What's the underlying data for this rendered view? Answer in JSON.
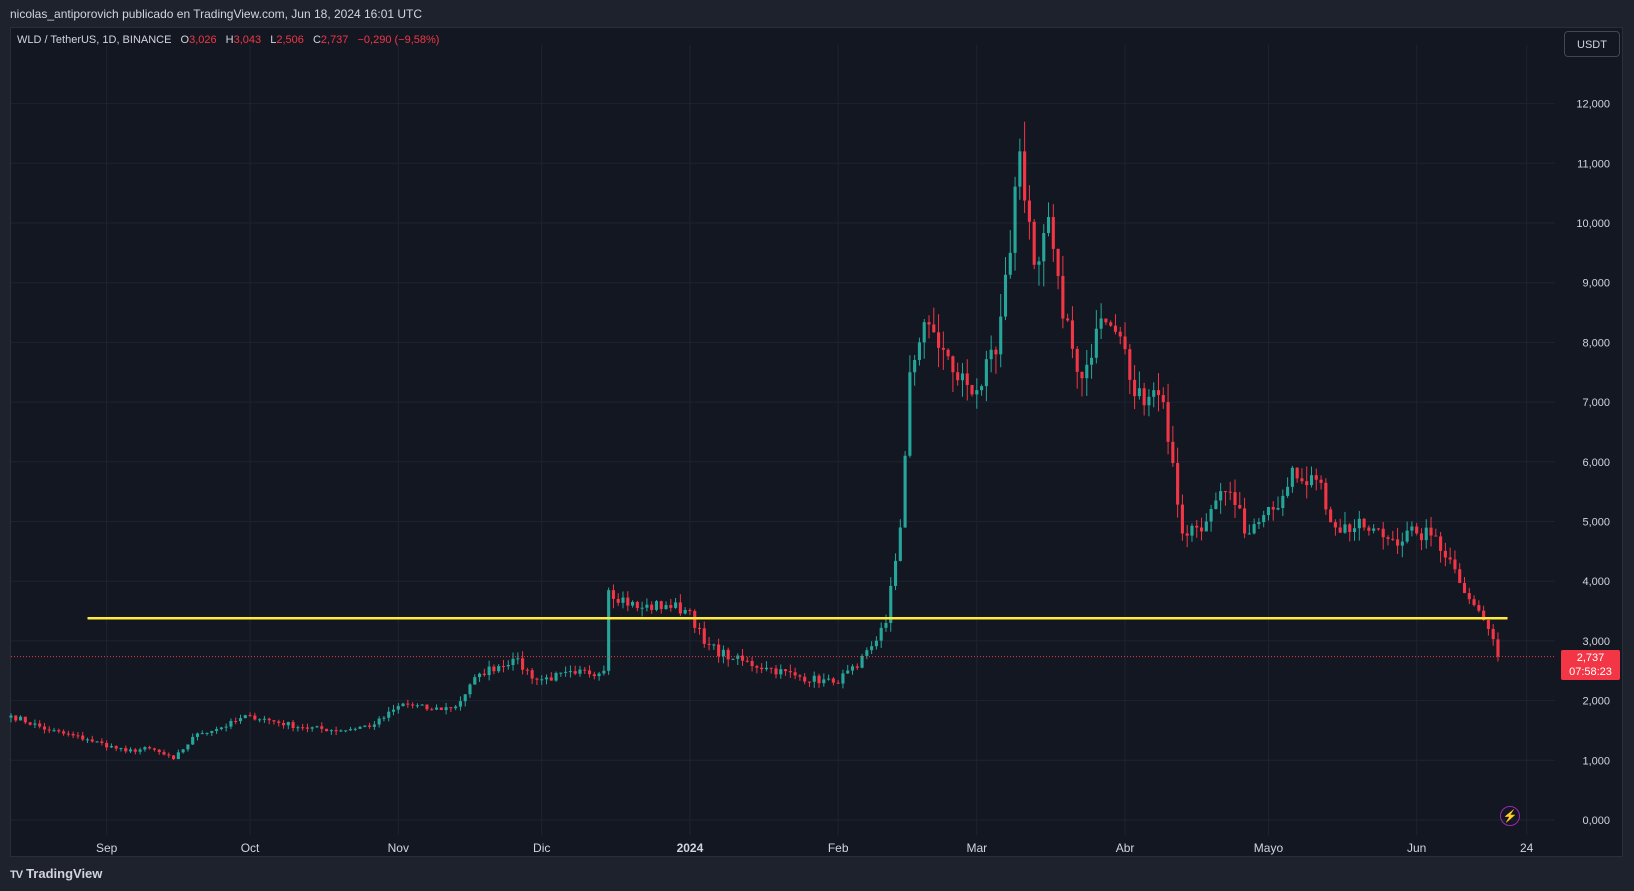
{
  "attribution": "nicolas_antiporovich publicado en TradingView.com, Jun 18, 2024 16:01 UTC",
  "legend": {
    "symbol": "WLD / TetherUS, 1D, BINANCE",
    "o_label": "O",
    "o_value": "3,026",
    "h_label": "H",
    "h_value": "3,043",
    "l_label": "L",
    "l_value": "2,506",
    "c_label": "C",
    "c_value": "2,737",
    "change": "−0,290 (−9,58%)"
  },
  "currency_button": "USDT",
  "last_price": {
    "value": "2,737",
    "countdown": "07:58:23"
  },
  "footer_brand": "TradingView",
  "colors": {
    "up": "#26a69a",
    "down": "#f23645",
    "level": "#ffeb3b",
    "background": "#131722",
    "grid": "#1f2330"
  },
  "chart_data": {
    "type": "candlestick",
    "title": "WLD / TetherUS, 1D, BINANCE",
    "ylim": [
      -0.2,
      12.4
    ],
    "y_ticks": [
      "0,000",
      "1,000",
      "2,000",
      "3,000",
      "4,000",
      "5,000",
      "6,000",
      "7,000",
      "8,000",
      "9,000",
      "10,000",
      "11,000",
      "12,000"
    ],
    "x_ticks": [
      "Sep",
      "Oct",
      "Nov",
      "Dic",
      "2024",
      "Feb",
      "Mar",
      "Abr",
      "Mayo",
      "Jun",
      "24"
    ],
    "x_range": [
      "2023-08-12",
      "2024-06-27"
    ],
    "horizontal_level": 3.38,
    "last_close": 2.737,
    "grid": true,
    "close_path": [
      [
        "2023-08-12",
        1.75
      ],
      [
        "2023-08-20",
        1.5
      ],
      [
        "2023-08-28",
        1.35
      ],
      [
        "2023-09-05",
        1.15
      ],
      [
        "2023-09-10",
        1.2
      ],
      [
        "2023-09-15",
        1.02
      ],
      [
        "2023-09-20",
        1.45
      ],
      [
        "2023-09-25",
        1.55
      ],
      [
        "2023-10-01",
        1.75
      ],
      [
        "2023-10-06",
        1.65
      ],
      [
        "2023-10-12",
        1.55
      ],
      [
        "2023-10-20",
        1.5
      ],
      [
        "2023-10-27",
        1.6
      ],
      [
        "2023-11-02",
        1.95
      ],
      [
        "2023-11-08",
        1.85
      ],
      [
        "2023-11-13",
        1.9
      ],
      [
        "2023-11-18",
        2.45
      ],
      [
        "2023-11-25",
        2.7
      ],
      [
        "2023-11-30",
        2.35
      ],
      [
        "2023-12-08",
        2.45
      ],
      [
        "2023-12-14",
        2.5
      ],
      [
        "2023-12-15",
        3.85
      ],
      [
        "2023-12-21",
        3.55
      ],
      [
        "2023-12-27",
        3.6
      ],
      [
        "2024-01-01",
        3.5
      ],
      [
        "2024-01-04",
        2.95
      ],
      [
        "2024-01-10",
        2.7
      ],
      [
        "2024-01-17",
        2.55
      ],
      [
        "2024-01-24",
        2.4
      ],
      [
        "2024-01-31",
        2.3
      ],
      [
        "2024-02-05",
        2.55
      ],
      [
        "2024-02-11",
        3.3
      ],
      [
        "2024-02-14",
        4.9
      ],
      [
        "2024-02-16",
        7.5
      ],
      [
        "2024-02-18",
        8.0
      ],
      [
        "2024-02-20",
        8.3
      ],
      [
        "2024-02-25",
        7.5
      ],
      [
        "2024-03-01",
        7.2
      ],
      [
        "2024-03-05",
        7.8
      ],
      [
        "2024-03-08",
        9.5
      ],
      [
        "2024-03-10",
        11.2
      ],
      [
        "2024-03-13",
        9.3
      ],
      [
        "2024-03-16",
        10.1
      ],
      [
        "2024-03-19",
        8.4
      ],
      [
        "2024-03-23",
        7.4
      ],
      [
        "2024-03-27",
        8.4
      ],
      [
        "2024-03-31",
        8.1
      ],
      [
        "2024-04-03",
        7.1
      ],
      [
        "2024-04-07",
        7.2
      ],
      [
        "2024-04-09",
        7.0
      ],
      [
        "2024-04-13",
        4.8
      ],
      [
        "2024-04-18",
        5.0
      ],
      [
        "2024-04-22",
        5.5
      ],
      [
        "2024-04-27",
        4.8
      ],
      [
        "2024-05-02",
        5.2
      ],
      [
        "2024-05-06",
        5.9
      ],
      [
        "2024-05-11",
        5.7
      ],
      [
        "2024-05-15",
        4.9
      ],
      [
        "2024-05-21",
        4.9
      ],
      [
        "2024-05-27",
        4.7
      ],
      [
        "2024-06-01",
        4.8
      ],
      [
        "2024-06-05",
        4.75
      ],
      [
        "2024-06-09",
        4.2
      ],
      [
        "2024-06-13",
        3.6
      ],
      [
        "2024-06-15",
        3.35
      ],
      [
        "2024-06-17",
        3.03
      ],
      [
        "2024-06-18",
        2.737
      ]
    ]
  }
}
